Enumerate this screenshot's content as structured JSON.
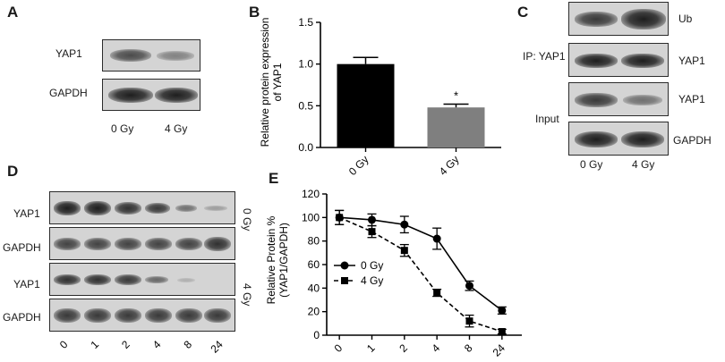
{
  "panels": {
    "A": {
      "label": "A",
      "rows": [
        "YAP1",
        "GAPDH"
      ],
      "lanes": [
        "0 Gy",
        "4 Gy"
      ]
    },
    "B": {
      "label": "B",
      "ylabel_line1": "Relative protein expression",
      "ylabel_line2": "of YAP1",
      "significance": "*"
    },
    "C": {
      "label": "C",
      "rows": [
        "Ub",
        "YAP1",
        "YAP1",
        "GAPDH"
      ],
      "ip_label": "IP: YAP1",
      "input_label": "Input",
      "lanes": [
        "0 Gy",
        "4 Gy"
      ]
    },
    "D": {
      "label": "D",
      "rows": [
        "YAP1",
        "GAPDH",
        "YAP1",
        "GAPDH"
      ],
      "condition_labels": [
        "0 Gy",
        "4 Gy"
      ],
      "lanes": [
        "0",
        "1",
        "2",
        "4",
        "8",
        "24"
      ]
    },
    "E": {
      "label": "E",
      "ylabel_line1": "Relative Protein %",
      "ylabel_line2": "(YAP1/GAPDH)"
    }
  },
  "chart_data": [
    {
      "type": "bar",
      "panel": "B",
      "categories": [
        "0 Gy",
        "4 Gy"
      ],
      "values": [
        1.0,
        0.48
      ],
      "errors": [
        0.08,
        0.04
      ],
      "colors": [
        "#000000",
        "#7f7f7f"
      ],
      "ylim": [
        0,
        1.5
      ],
      "yticks": [
        "0.0",
        "0.5",
        "1.0",
        "1.5"
      ],
      "xlabel": "",
      "ylabel": "Relative protein expression of YAP1"
    },
    {
      "type": "line",
      "panel": "E",
      "categories": [
        "0",
        "1",
        "2",
        "4",
        "8",
        "24"
      ],
      "series": [
        {
          "name": "0 Gy",
          "values": [
            100,
            98,
            94,
            82,
            42,
            21
          ],
          "errors": [
            6,
            5,
            7,
            9,
            4,
            3
          ],
          "marker": "circle",
          "dash": "solid"
        },
        {
          "name": "4 Gy",
          "values": [
            100,
            88,
            72,
            36,
            12,
            3
          ],
          "errors": [
            6,
            5,
            5,
            3,
            5,
            2
          ],
          "marker": "square",
          "dash": "dashed"
        }
      ],
      "ylim": [
        0,
        120
      ],
      "yticks": [
        "0",
        "20",
        "40",
        "60",
        "80",
        "100",
        "120"
      ],
      "legend": "left-middle",
      "ylabel": "Relative Protein % (YAP1/GAPDH)"
    }
  ]
}
